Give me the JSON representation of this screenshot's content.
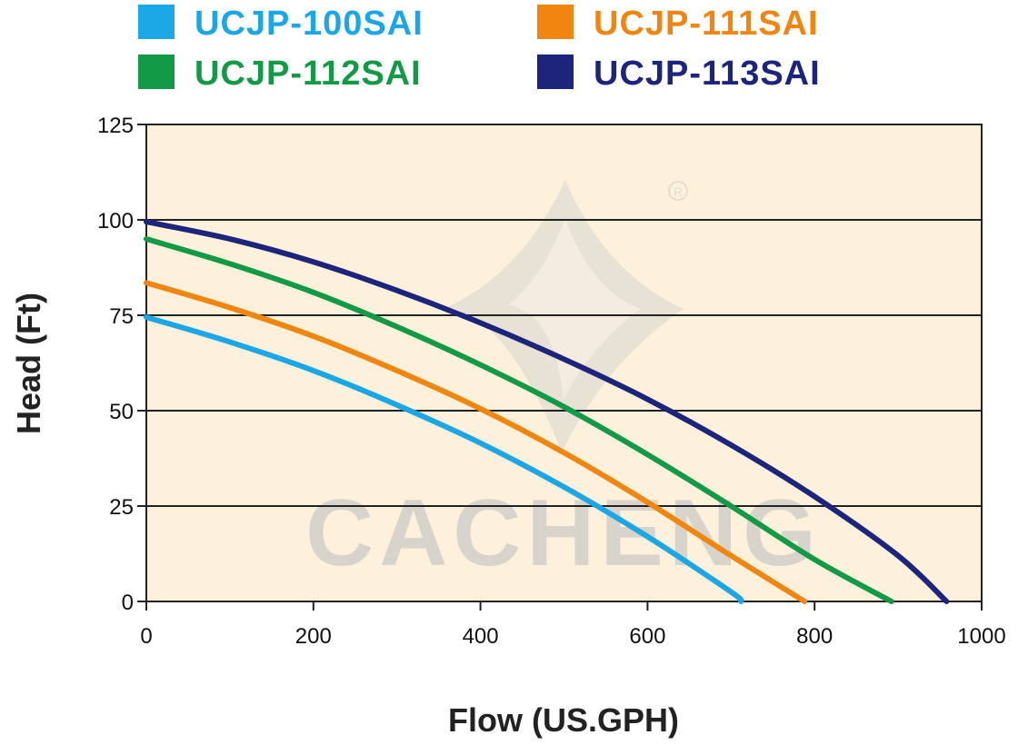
{
  "chart_data": {
    "type": "line",
    "title": "",
    "xlabel": "Flow (US.GPH)",
    "ylabel": "Head (Ft)",
    "xlim": [
      0,
      1000
    ],
    "ylim": [
      0,
      125
    ],
    "x_ticks": [
      0,
      200,
      400,
      600,
      800,
      1000
    ],
    "y_ticks": [
      0,
      25,
      50,
      75,
      100,
      125
    ],
    "grid": "horizontal",
    "legend_position": "top",
    "background": "#fdf1dc",
    "watermark": "CACHENG",
    "series": [
      {
        "name": "UCJP-100SAI",
        "color": "#1ba7e6",
        "x": [
          0,
          100,
          200,
          300,
          400,
          500,
          600,
          700,
          712
        ],
        "y": [
          74.5,
          68,
          60.5,
          51.5,
          41.5,
          30,
          17,
          2.5,
          0
        ]
      },
      {
        "name": "UCJP-111SAI",
        "color": "#f0860f",
        "x": [
          0,
          100,
          200,
          300,
          400,
          500,
          600,
          700,
          788
        ],
        "y": [
          83.5,
          77,
          69.5,
          60.5,
          50.5,
          39,
          26,
          12,
          0
        ]
      },
      {
        "name": "UCJP-112SAI",
        "color": "#129a46",
        "x": [
          0,
          100,
          200,
          300,
          400,
          500,
          600,
          700,
          800,
          892
        ],
        "y": [
          95,
          88.5,
          81,
          72,
          62,
          51,
          38.5,
          25,
          11,
          0
        ]
      },
      {
        "name": "UCJP-113SAI",
        "color": "#1c247c",
        "x": [
          0,
          100,
          200,
          300,
          400,
          500,
          600,
          700,
          800,
          900,
          958
        ],
        "y": [
          99.5,
          95,
          89,
          81.5,
          73,
          63.5,
          53,
          41,
          27.5,
          12,
          0
        ]
      }
    ]
  }
}
